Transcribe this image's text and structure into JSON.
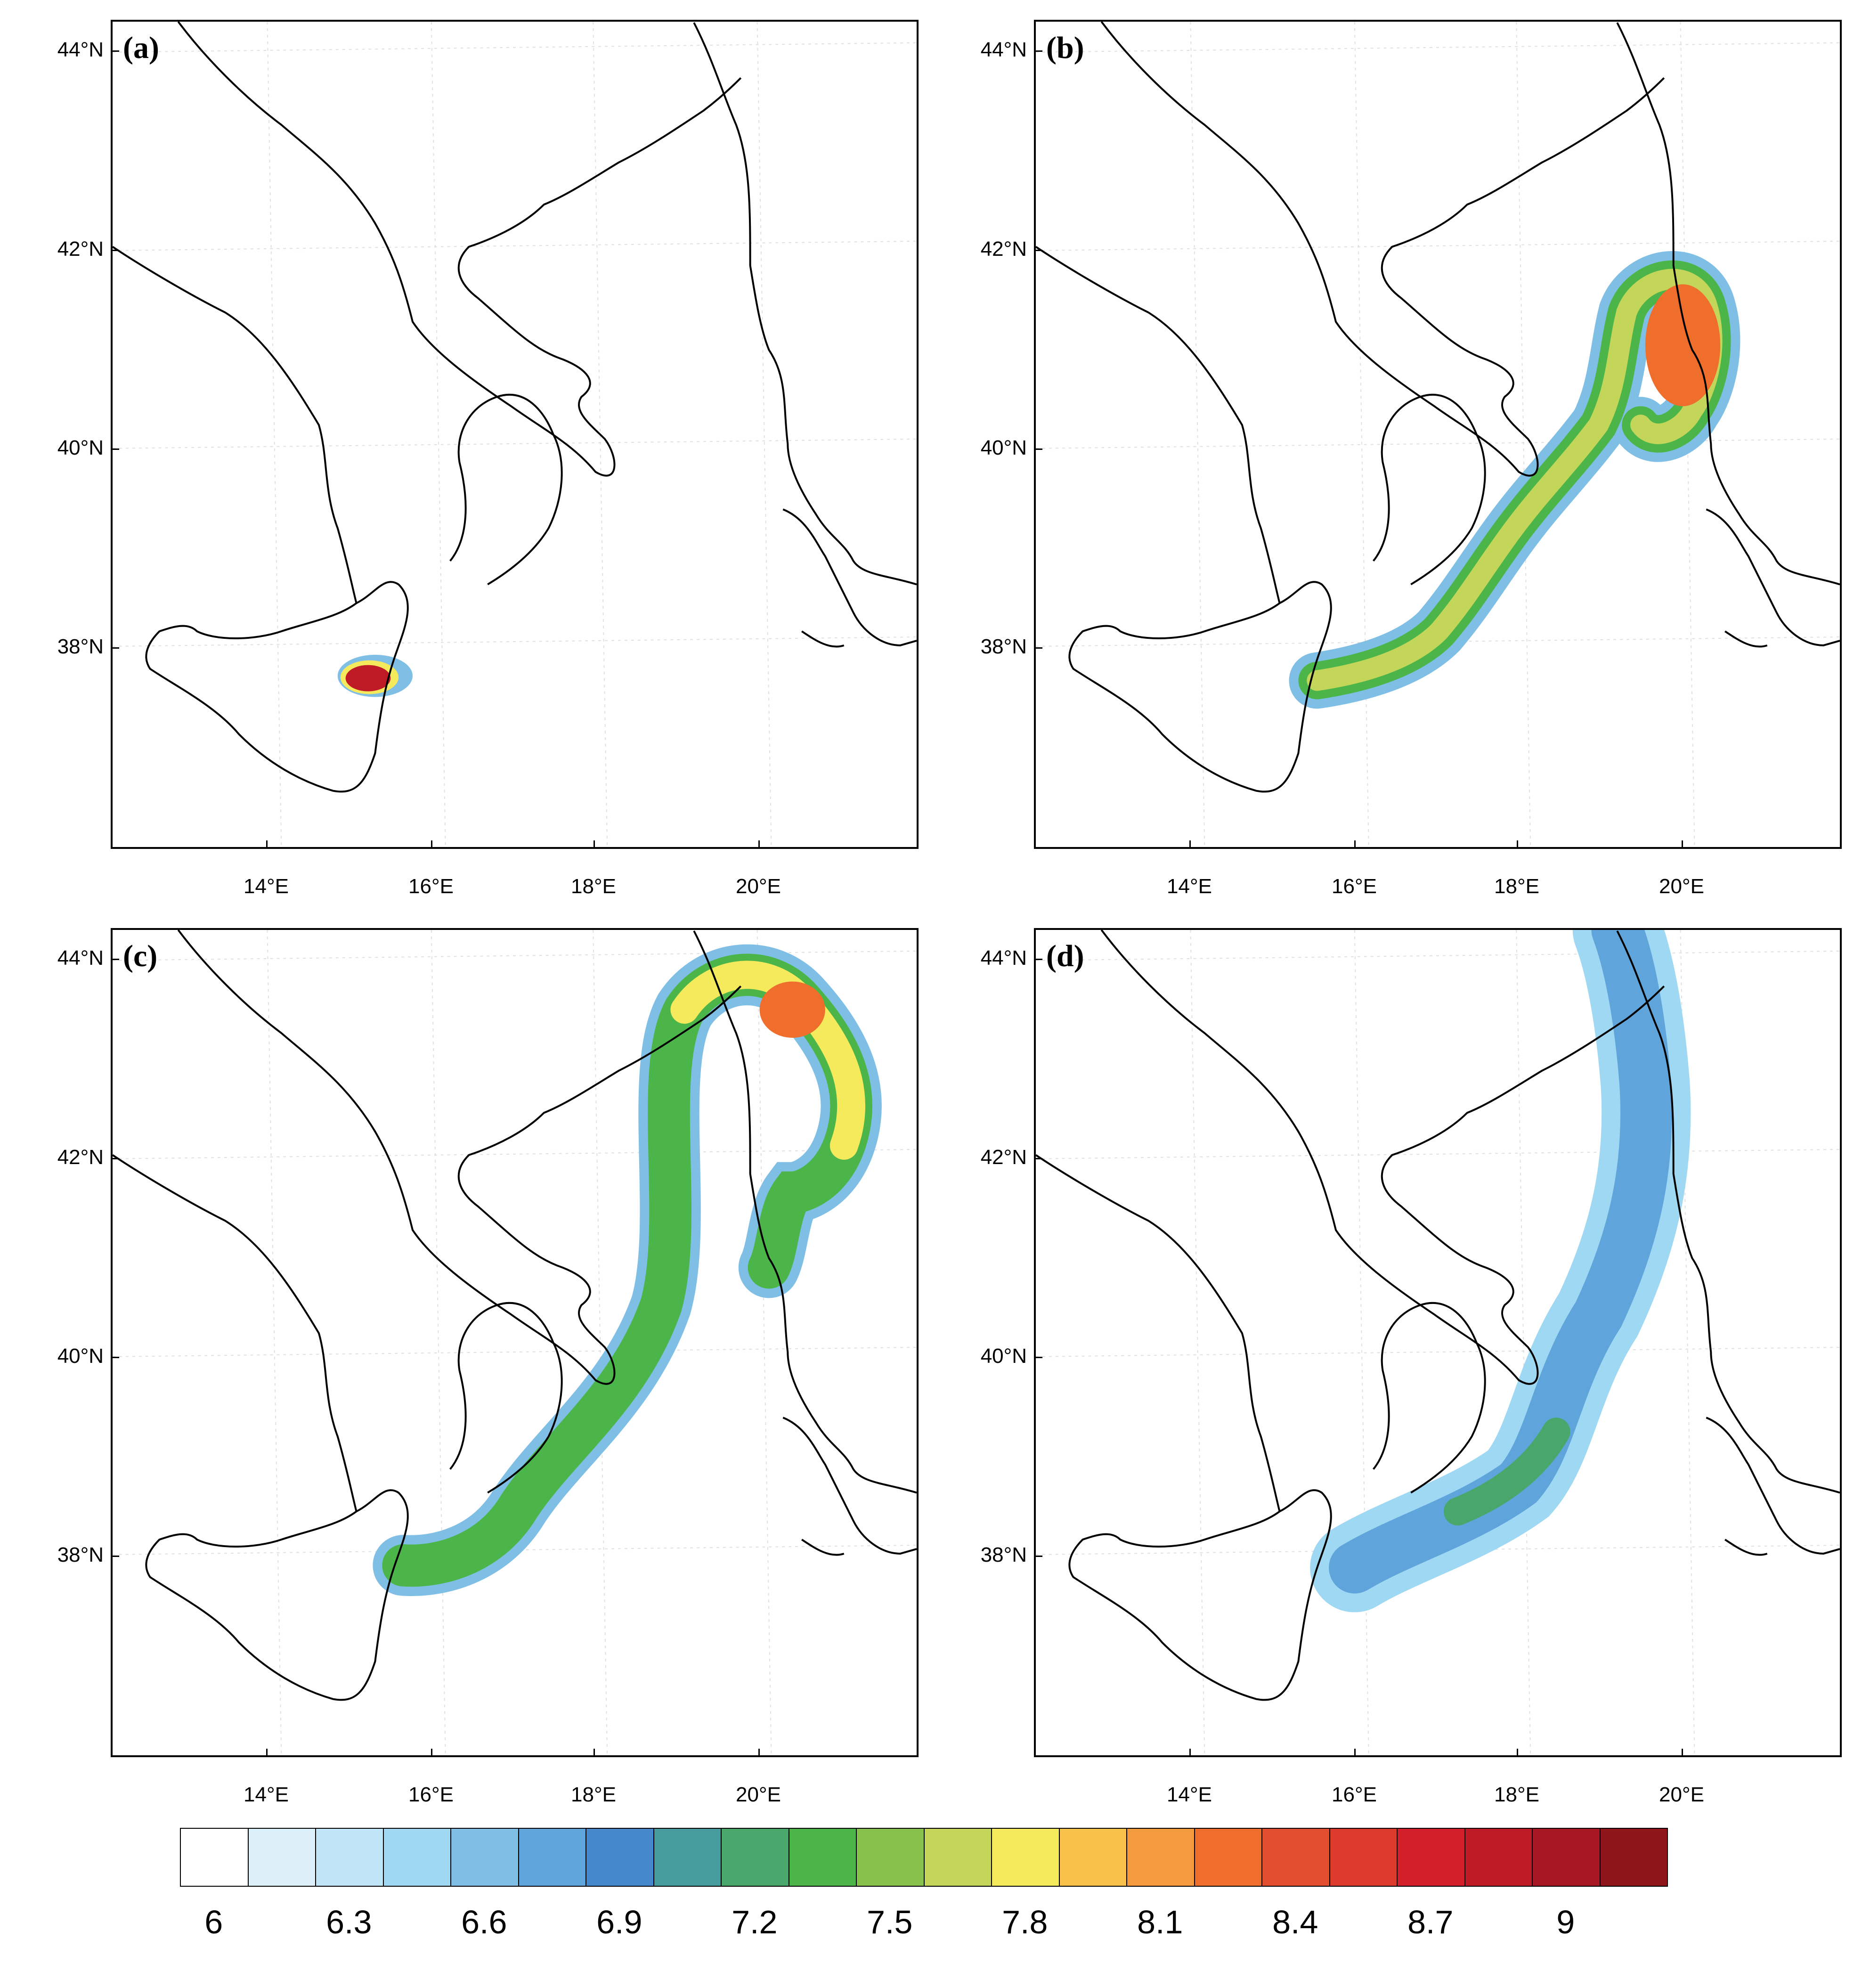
{
  "panels": [
    {
      "label": "(a)"
    },
    {
      "label": "(b)"
    },
    {
      "label": "(c)"
    },
    {
      "label": "(d)"
    }
  ],
  "axes": {
    "lat_labels": [
      "44°N",
      "42°N",
      "40°N",
      "38°N"
    ],
    "lon_labels": [
      "14°E",
      "16°E",
      "18°E",
      "20°E"
    ]
  },
  "colorbar": {
    "labels": [
      "6",
      "6.3",
      "6.6",
      "6.9",
      "7.2",
      "7.5",
      "7.8",
      "8.1",
      "8.4",
      "8.7",
      "9"
    ],
    "colors": [
      "#ffffff",
      "#dcf0fa",
      "#bfe5f6",
      "#9fd8f2",
      "#7fbfe6",
      "#5fa5dc",
      "#4589cc",
      "#479c9e",
      "#49a76c",
      "#4cb54a",
      "#86c24c",
      "#c4d65a",
      "#f5e95c",
      "#f8c24a",
      "#f59b3e",
      "#ef6e2c",
      "#e34f2e",
      "#dc3a2a",
      "#d21f2a",
      "#be1b27",
      "#a81824",
      "#8e1519"
    ]
  }
}
